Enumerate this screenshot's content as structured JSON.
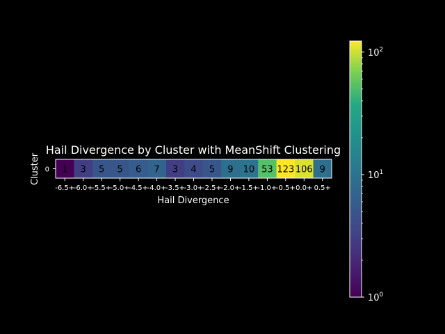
{
  "chart_data": {
    "type": "heatmap",
    "title": "Hail Divergence by Cluster with MeanShift Clustering",
    "xlabel": "Hail Divergence",
    "ylabel": "Cluster",
    "x_categories": [
      "-6.5+",
      "-6.0+",
      "-5.5+",
      "-5.0+",
      "-4.5+",
      "-4.0+",
      "-3.5+",
      "-3.0+",
      "-2.5+",
      "-2.0+",
      "-1.5+",
      "-1.0+",
      "-0.5+",
      "0.0+",
      "0.5+"
    ],
    "y_categories": [
      "0"
    ],
    "values": [
      [
        1,
        3,
        5,
        5,
        6,
        7,
        3,
        4,
        5,
        9,
        10,
        53,
        123,
        106,
        9
      ]
    ],
    "colormap": "viridis",
    "color_scale": "log",
    "color_range": [
      1,
      123
    ],
    "colorbar": {
      "ticks": [
        {
          "base": "10",
          "exp": "0",
          "value": 1
        },
        {
          "base": "10",
          "exp": "1",
          "value": 10
        },
        {
          "base": "10",
          "exp": "2",
          "value": 100
        }
      ]
    },
    "grid": false,
    "background": "#000000",
    "text_color": "#ffffff",
    "cell_text_color": "#000000"
  }
}
